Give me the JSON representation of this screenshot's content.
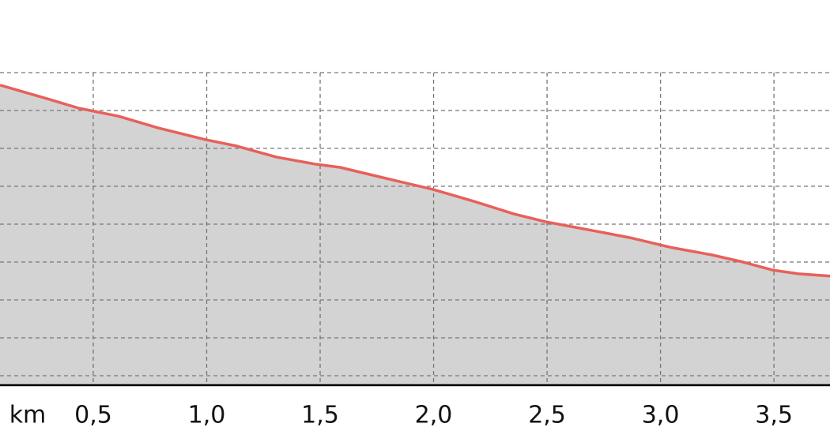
{
  "chart_data": {
    "type": "area",
    "x_unit": "km",
    "x": [
      0.089,
      0.298,
      0.437,
      0.611,
      0.786,
      0.995,
      1.134,
      1.308,
      1.483,
      1.587,
      1.761,
      1.995,
      2.179,
      2.354,
      2.496,
      2.737,
      2.876,
      3.051,
      3.225,
      3.364,
      3.493,
      3.608,
      3.747
    ],
    "values": [
      7.92,
      7.56,
      7.31,
      7.1,
      6.79,
      6.48,
      6.31,
      6.02,
      5.83,
      5.75,
      5.5,
      5.17,
      4.85,
      4.52,
      4.31,
      4.04,
      3.88,
      3.63,
      3.44,
      3.25,
      3.04,
      2.94,
      2.88
    ],
    "color": "#e8605a",
    "fill": "#d3d3d3",
    "xlim": [
      0.089,
      3.747
    ],
    "ylim": [
      0,
      10.167
    ],
    "xticks": [
      {
        "value": 0.5,
        "label": "0,5"
      },
      {
        "value": 1.0,
        "label": "1,0"
      },
      {
        "value": 1.5,
        "label": "1,5"
      },
      {
        "value": 2.0,
        "label": "2,0"
      },
      {
        "value": 2.5,
        "label": "2,5"
      },
      {
        "value": 3.0,
        "label": "3,0"
      },
      {
        "value": 3.5,
        "label": "3,5"
      }
    ],
    "ygrid": [
      0.25,
      1.25,
      2.25,
      3.25,
      4.25,
      5.25,
      6.25,
      7.25,
      8.25
    ],
    "grid": true
  }
}
